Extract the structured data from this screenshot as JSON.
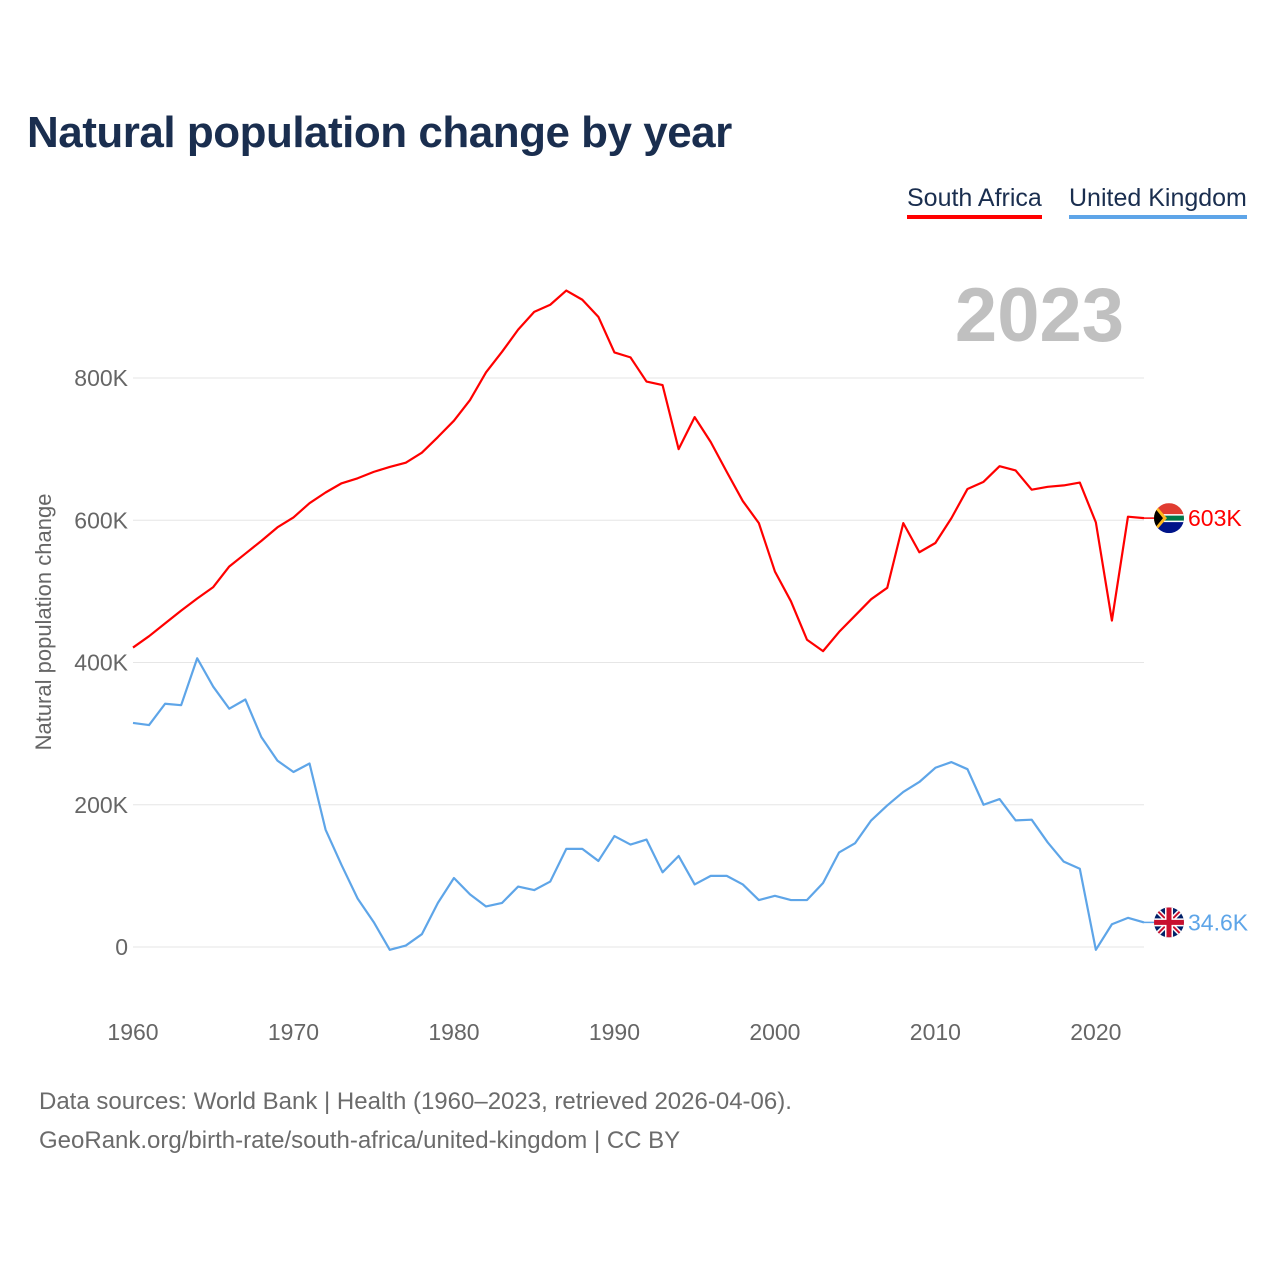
{
  "chart_data": {
    "type": "line",
    "title": "Natural population change by year",
    "ylabel": "Natural population change",
    "xlabel": "",
    "year_label": "2023",
    "x_range": [
      1960,
      2023
    ],
    "ylim": [
      -100000,
      850000
    ],
    "y_ticks": [
      0,
      200000,
      400000,
      600000,
      800000
    ],
    "y_tick_labels": [
      "0",
      "200K",
      "400K",
      "600K",
      "800K"
    ],
    "x_ticks": [
      1960,
      1970,
      1980,
      1990,
      2000,
      2010,
      2020
    ],
    "x_tick_labels": [
      "1960",
      "1970",
      "1980",
      "1990",
      "2000",
      "2010",
      "2020"
    ],
    "grid": true,
    "legend_position": "top-right",
    "series": [
      {
        "name": "South Africa",
        "color": "#ff0000",
        "end_label": "603K",
        "flag": "south-africa",
        "values": [
          421,
          437,
          455,
          473,
          490,
          506,
          535,
          553,
          571,
          590,
          604,
          624,
          639,
          652,
          659,
          668,
          675,
          681,
          695,
          717,
          740,
          769,
          808,
          837,
          868,
          893,
          903,
          923,
          910,
          886,
          836,
          829,
          795,
          790,
          700,
          745,
          710,
          668,
          627,
          596,
          528,
          486,
          432,
          416,
          443,
          466,
          489,
          505,
          596,
          555,
          568,
          603,
          644,
          654,
          676,
          670,
          643,
          647,
          649,
          653,
          597,
          459,
          605,
          603
        ]
      },
      {
        "name": "United Kingdom",
        "color": "#5ea5e8",
        "end_label": "34.6K",
        "flag": "united-kingdom",
        "values": [
          315,
          312,
          342,
          340,
          406,
          366,
          335,
          348,
          295,
          262,
          246,
          258,
          165,
          115,
          68,
          35,
          -4,
          2,
          18,
          62,
          97,
          74,
          57,
          62,
          85,
          80,
          92,
          138,
          138,
          121,
          156,
          144,
          151,
          105,
          128,
          88,
          100,
          100,
          88,
          66,
          72,
          66,
          66,
          90,
          133,
          146,
          178,
          199,
          218,
          232,
          252,
          260,
          250,
          200,
          208,
          178,
          179,
          147,
          120,
          110,
          -4,
          32,
          41,
          34.6
        ]
      }
    ],
    "value_unit": "thousands"
  },
  "footer": {
    "line1": "Data sources: World Bank | Health (1960–2023, retrieved 2026-04-06).",
    "line2": "GeoRank.org/birth-rate/south-africa/united-kingdom | CC BY"
  }
}
